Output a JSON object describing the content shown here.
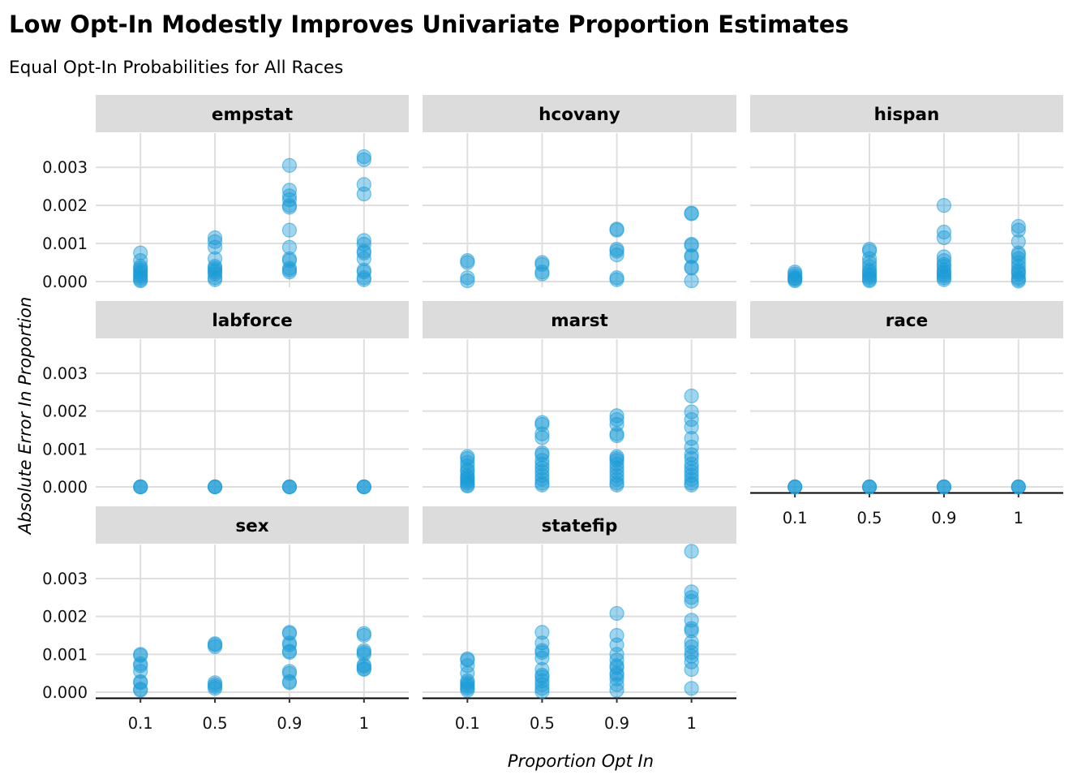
{
  "chart_data": {
    "type": "scatter",
    "title": "Low Opt-In Modestly Improves Univariate Proportion Estimates",
    "subtitle": "Equal Opt-In Probabilities for All Races",
    "xlabel": "Proportion Opt In",
    "ylabel": "Absolute Error In Proportion",
    "x_categories": [
      "0.1",
      "0.5",
      "0.9",
      "1"
    ],
    "y_ticks": [
      0,
      0.001,
      0.002,
      0.003
    ],
    "y_tick_labels": [
      "0.000",
      "0.001",
      "0.002",
      "0.003"
    ],
    "ylim": [
      -0.00015,
      0.0039
    ],
    "grid": true,
    "point_color": "#1a9ad7",
    "strip_color": "#dcdcdc",
    "facets": [
      {
        "name": "empstat",
        "points": {
          "0.1": [
            0.00075,
            0.00055,
            0.0004,
            0.00035,
            0.0003,
            0.00025,
            0.0002,
            0.00015,
            0.0001,
            5e-05,
            2e-05
          ],
          "0.5": [
            0.00115,
            0.00105,
            0.0009,
            0.0006,
            0.0004,
            0.00035,
            0.0003,
            0.00025,
            0.0002,
            0.0001,
            5e-05
          ],
          "0.9": [
            0.00305,
            0.0024,
            0.00225,
            0.00215,
            0.002,
            0.00195,
            0.00135,
            0.0009,
            0.0006,
            0.00055,
            0.00035,
            0.0003,
            0.00025
          ],
          "1": [
            0.00328,
            0.0032,
            0.00255,
            0.0023,
            0.00108,
            0.00098,
            0.0008,
            0.00075,
            0.0006,
            0.0003,
            0.00025,
            0.0001,
            5e-05
          ]
        }
      },
      {
        "name": "hcovany",
        "points": {
          "0.1": [
            0.00055,
            0.0005,
            0.0001,
            2e-05
          ],
          "0.5": [
            0.0005,
            0.00045,
            0.00025,
            0.0002
          ],
          "0.9": [
            0.00138,
            0.00135,
            0.00085,
            0.0008,
            0.0007,
            0.0001,
            5e-05
          ],
          "1": [
            0.0018,
            0.00178,
            0.00098,
            0.00095,
            0.00068,
            0.00065,
            0.00038,
            0.00035,
            2e-05
          ]
        }
      },
      {
        "name": "hispan",
        "points": {
          "0.1": [
            0.00025,
            0.0002,
            0.00015,
            0.0001,
            8e-05,
            5e-05,
            2e-05
          ],
          "0.5": [
            0.00085,
            0.0008,
            0.0006,
            0.0005,
            0.0004,
            0.0003,
            0.00025,
            0.0002,
            0.00015,
            0.0001,
            5e-05,
            2e-05
          ],
          "0.9": [
            0.002,
            0.0013,
            0.00115,
            0.00065,
            0.00055,
            0.00045,
            0.0004,
            0.0003,
            0.00025,
            0.0002,
            0.00015,
            0.0001,
            5e-05
          ],
          "1": [
            0.00145,
            0.00135,
            0.00105,
            0.00075,
            0.0007,
            0.0006,
            0.0005,
            0.0004,
            0.0003,
            0.00025,
            0.0002,
            0.0001,
            5e-05,
            1e-05
          ]
        }
      },
      {
        "name": "labforce",
        "points": {
          "0.1": [
            0.0,
            0.0,
            0.0
          ],
          "0.5": [
            0.0,
            0.0,
            0.0
          ],
          "0.9": [
            0.0,
            0.0,
            0.0
          ],
          "1": [
            0.0,
            0.0,
            0.0
          ]
        }
      },
      {
        "name": "marst",
        "points": {
          "0.1": [
            0.0008,
            0.00075,
            0.00065,
            0.00055,
            0.00045,
            0.0004,
            0.0003,
            0.00025,
            0.0002,
            0.00015,
            0.0001,
            5e-05,
            2e-05
          ],
          "0.5": [
            0.0017,
            0.00165,
            0.0014,
            0.0013,
            0.0009,
            0.00085,
            0.0007,
            0.0006,
            0.0005,
            0.0004,
            0.0003,
            0.0002,
            0.0001,
            5e-05
          ],
          "0.9": [
            0.00188,
            0.00178,
            0.00165,
            0.0014,
            0.00135,
            0.0008,
            0.00075,
            0.0007,
            0.0006,
            0.0005,
            0.0004,
            0.0003,
            0.0002,
            0.0001,
            5e-05
          ],
          "1": [
            0.0024,
            0.00198,
            0.00178,
            0.00158,
            0.00128,
            0.00105,
            0.00085,
            0.00075,
            0.0006,
            0.0005,
            0.0004,
            0.0003,
            0.0002,
            0.0001,
            5e-05
          ]
        }
      },
      {
        "name": "race",
        "points": {
          "0.1": [
            0.0,
            0.0,
            0.0
          ],
          "0.5": [
            0.0,
            0.0,
            0.0
          ],
          "0.9": [
            0.0,
            0.0,
            0.0
          ],
          "1": [
            0.0,
            0.0,
            0.0
          ]
        }
      },
      {
        "name": "sex",
        "points": {
          "0.1": [
            0.001,
            0.00097,
            0.00075,
            0.0007,
            0.00055,
            0.00028,
            0.00025,
            8e-05,
            5e-05
          ],
          "0.5": [
            0.00128,
            0.00125,
            0.0012,
            0.00025,
            0.0002,
            0.00015,
            0.0001
          ],
          "0.9": [
            0.00158,
            0.00155,
            0.0013,
            0.00125,
            0.00108,
            0.00105,
            0.00055,
            0.0005,
            0.00028,
            0.00025
          ],
          "1": [
            0.00155,
            0.0015,
            0.0011,
            0.00105,
            0.001,
            0.00072,
            0.00068,
            0.00062,
            0.0006
          ]
        }
      },
      {
        "name": "statefip",
        "points": {
          "0.1": [
            0.00088,
            0.00085,
            0.0007,
            0.0005,
            0.0003,
            0.00025,
            0.0002,
            0.00015,
            0.0001,
            5e-05
          ],
          "0.5": [
            0.00158,
            0.0013,
            0.0011,
            0.00105,
            0.0009,
            0.0006,
            0.00045,
            0.0004,
            0.0003,
            0.0002,
            0.0001,
            2e-05
          ],
          "0.9": [
            0.00208,
            0.0015,
            0.00125,
            0.001,
            0.00085,
            0.0007,
            0.00065,
            0.0005,
            0.00045,
            0.00035,
            0.0002,
            5e-05
          ],
          "1": [
            0.00372,
            0.00265,
            0.0025,
            0.0024,
            0.0019,
            0.00168,
            0.00162,
            0.00132,
            0.0012,
            0.00105,
            0.00095,
            0.0008,
            0.0006,
            0.0001
          ]
        }
      }
    ]
  }
}
